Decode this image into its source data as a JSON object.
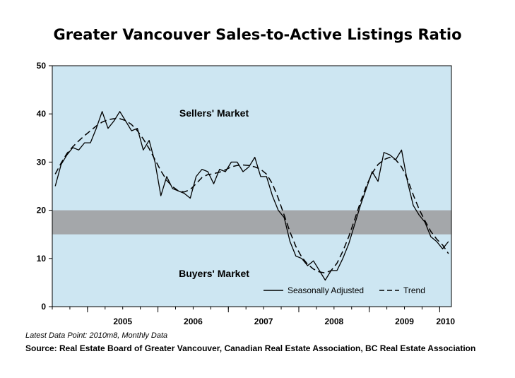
{
  "chart_data": {
    "type": "line",
    "title": "Greater Vancouver Sales-to-Active Listings Ratio",
    "ylim": [
      0,
      50
    ],
    "yticks": [
      0,
      10,
      20,
      30,
      40,
      50
    ],
    "xticks": [
      "2005",
      "2006",
      "2007",
      "2008",
      "2009",
      "2010"
    ],
    "x_start": "2004m7",
    "x_end": "2010m8",
    "band": {
      "low": 15,
      "high": 20,
      "label_above": "Sellers' Market",
      "label_below": "Buyers' Market"
    },
    "legend": {
      "position": "bottom-right",
      "entries": [
        "Seasonally Adjusted",
        "Trend"
      ]
    },
    "series": [
      {
        "name": "Seasonally Adjusted",
        "style": "solid",
        "values": [
          25.0,
          29.5,
          31.5,
          33.0,
          32.5,
          34.0,
          34.0,
          37.0,
          40.5,
          37.0,
          38.5,
          40.5,
          38.5,
          36.5,
          37.0,
          32.5,
          34.5,
          30.0,
          23.0,
          27.0,
          24.5,
          24.0,
          23.5,
          22.5,
          27.0,
          28.5,
          28.0,
          25.5,
          28.5,
          28.0,
          30.0,
          30.0,
          28.0,
          29.0,
          31.0,
          27.0,
          27.0,
          23.0,
          20.0,
          18.5,
          13.5,
          10.5,
          10.0,
          8.5,
          9.5,
          7.5,
          5.5,
          7.5,
          7.5,
          10.0,
          13.0,
          17.0,
          21.0,
          24.5,
          28.0,
          26.0,
          32.0,
          31.5,
          30.5,
          32.5,
          26.0,
          21.0,
          19.0,
          17.5,
          14.5,
          13.5,
          12.0,
          13.5
        ]
      },
      {
        "name": "Trend",
        "style": "dashed",
        "values": [
          27.5,
          29.8,
          31.8,
          33.2,
          34.4,
          35.5,
          36.5,
          37.5,
          38.3,
          38.8,
          39.0,
          39.0,
          38.6,
          37.8,
          36.5,
          34.8,
          32.8,
          30.5,
          28.2,
          26.2,
          24.9,
          24.0,
          23.8,
          24.3,
          25.5,
          26.8,
          27.4,
          27.6,
          27.9,
          28.4,
          29.0,
          29.3,
          29.4,
          29.3,
          29.0,
          28.5,
          27.5,
          25.5,
          22.5,
          19.0,
          15.5,
          12.5,
          10.3,
          8.8,
          7.8,
          7.2,
          7.0,
          7.5,
          9.0,
          11.5,
          14.5,
          18.0,
          21.7,
          25.0,
          27.7,
          29.5,
          30.5,
          31.0,
          30.5,
          29.0,
          26.5,
          23.2,
          20.2,
          17.8,
          15.6,
          14.0,
          12.8,
          11.0
        ]
      }
    ]
  },
  "footer": {
    "note": "Latest Data Point: 2010m8, Monthly Data",
    "source": "Source: Real Estate Board of Greater Vancouver, Canadian Real Estate Association, BC Real Estate Association"
  }
}
